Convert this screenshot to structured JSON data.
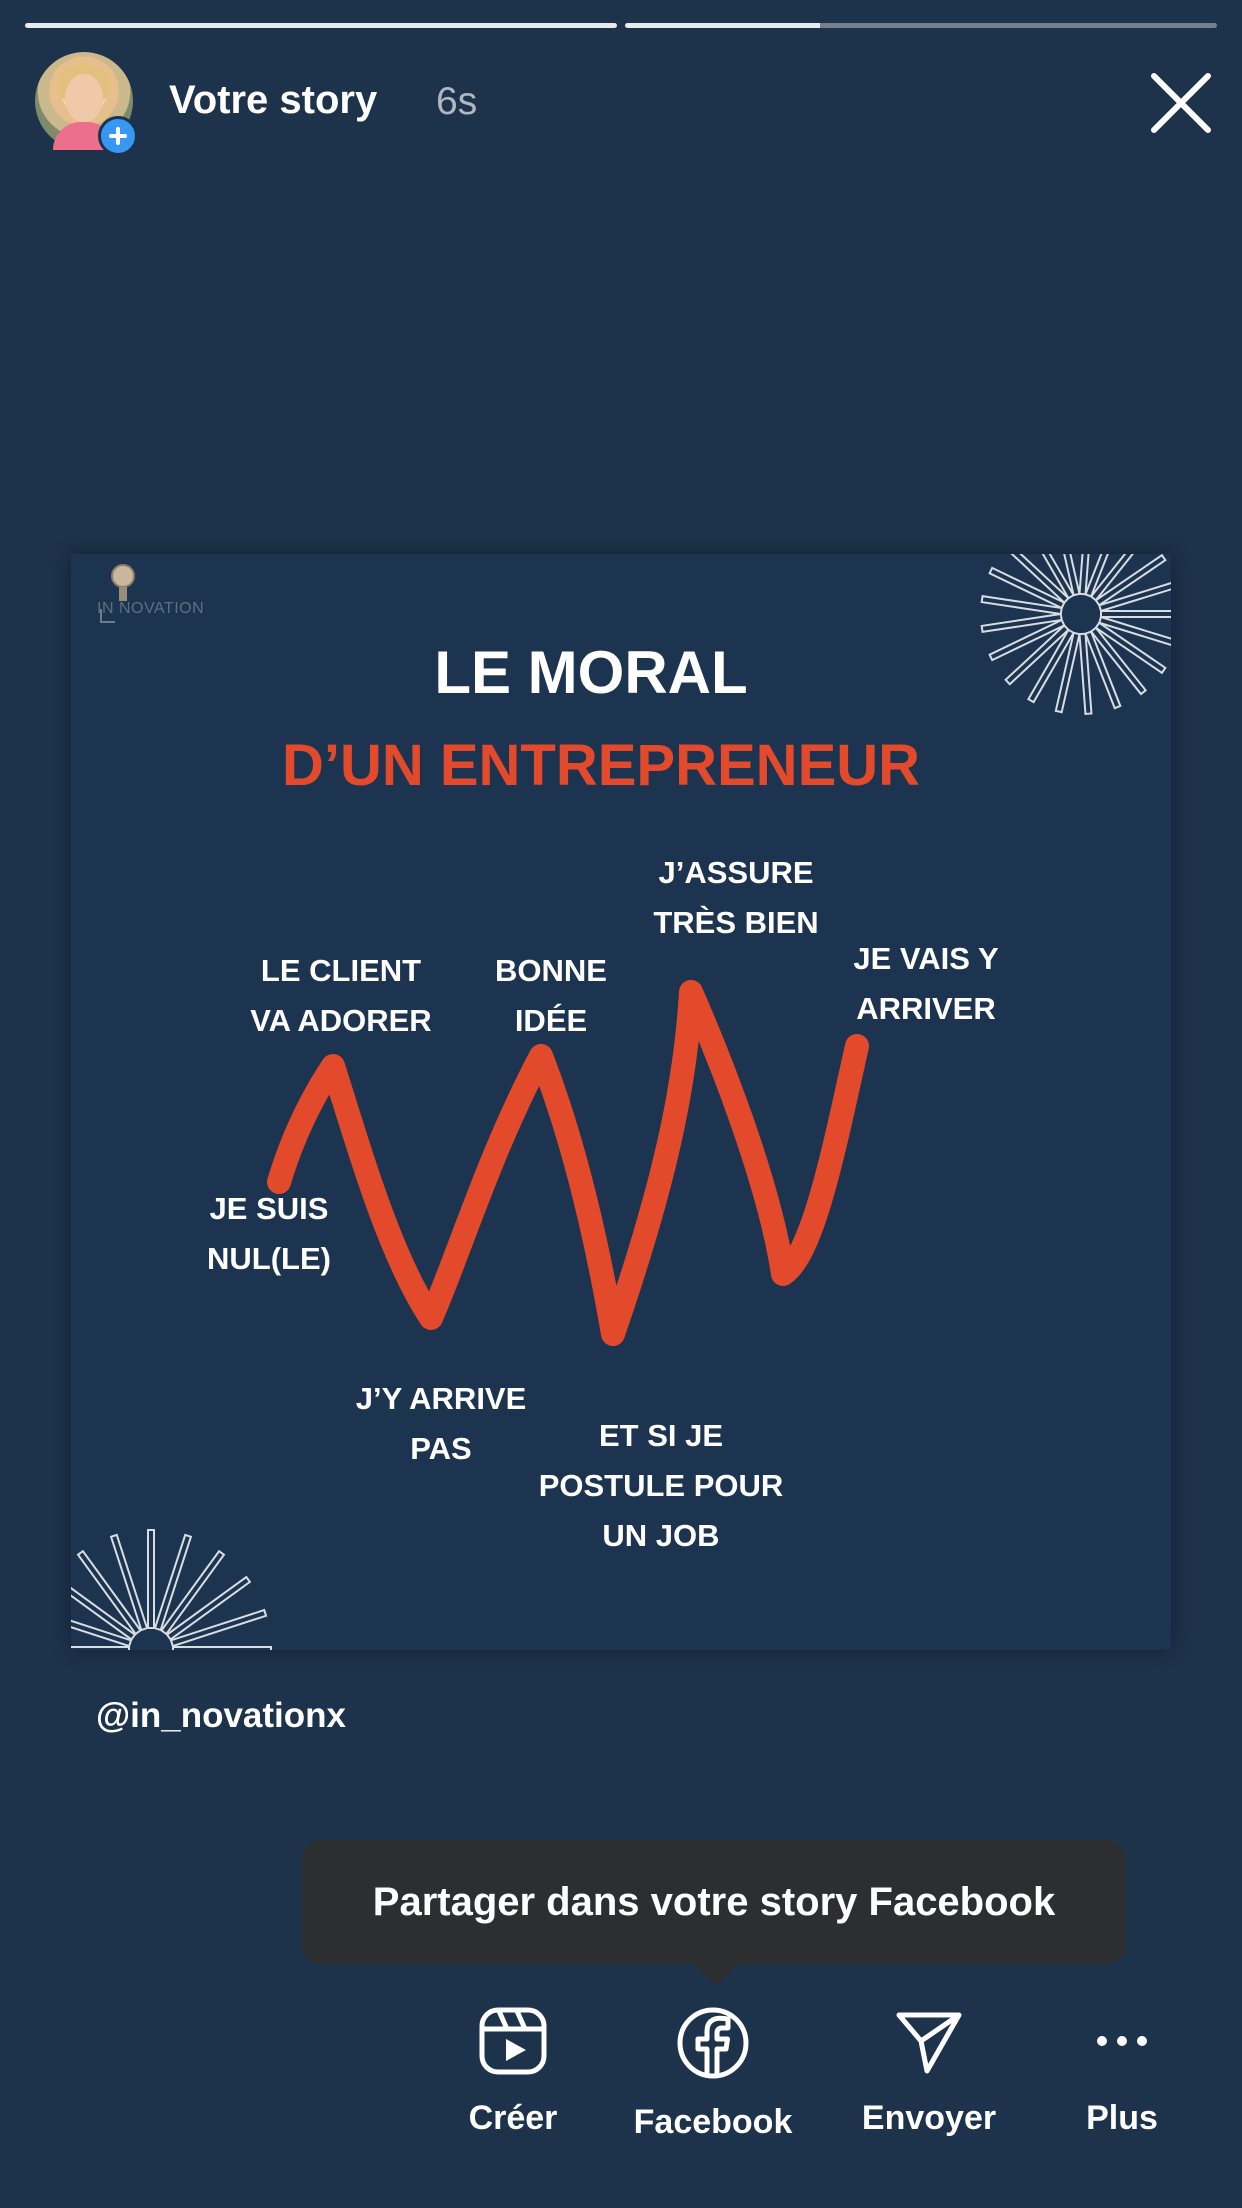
{
  "story": {
    "progress": [
      1.0,
      0.33
    ],
    "title": "Votre story",
    "elapsed": "6s"
  },
  "post": {
    "logo_text": "IN NOVATION",
    "title_line1": "LE MORAL",
    "title_line2": "D’UN ENTREPRENEUR",
    "accent_color": "#e24a2b",
    "labels": {
      "je_suis_nul": "JE SUIS\nNUL(LE)",
      "le_client": "LE CLIENT\nVA ADORER",
      "jy_arrive_pas": "J’Y ARRIVE\nPAS",
      "bonne_idee": "BONNE\nIDÉE",
      "postule": "ET SI JE\nPOSTULE POUR\nUN JOB",
      "jassure": "J’ASSURE\nTRÈS BIEN",
      "je_vais": "JE VAIS Y\nARRIVER"
    }
  },
  "mention": "@in_novationx",
  "tooltip": "Partager dans votre story Facebook",
  "actions": {
    "creer": "Créer",
    "facebook": "Facebook",
    "envoyer": "Envoyer",
    "plus": "Plus"
  }
}
